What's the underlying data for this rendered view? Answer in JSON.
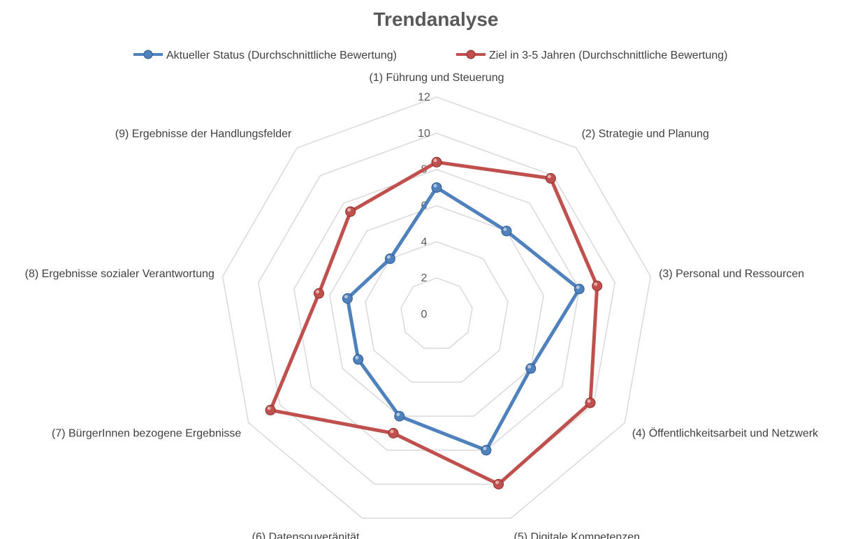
{
  "chart_data": {
    "type": "radar",
    "title": "Trendanalyse",
    "categories": [
      "(1) Führung und Steuerung",
      "(2) Strategie und Planung",
      "(3) Personal und Ressourcen",
      "(4) Öffentlichkeitsarbeit und Netzwerk",
      "(5) Digitale Kompetenzen",
      "(6) Datensouveränität",
      "(7) BürgerInnen bezogene Ergebnisse",
      "(8) Ergebnisse sozialer Verantwortung",
      "(9) Ergebnisse der Handlungsfelder"
    ],
    "series": [
      {
        "name": "Aktueller Status (Durchschnittliche Bewertung)",
        "color": "#4f81bd",
        "values": [
          7,
          6,
          8,
          6,
          8,
          6,
          5,
          5,
          4
        ]
      },
      {
        "name": "Ziel in 3-5 Jahren (Durchschnittliche Bewertung)",
        "color": "#c0504d",
        "values": [
          8.4,
          9.8,
          9,
          9.8,
          10,
          7,
          10.6,
          6.6,
          7.4
        ]
      }
    ],
    "rlim": [
      0,
      12
    ],
    "ticks": [
      "0",
      "2",
      "4",
      "6",
      "8",
      "10",
      "12"
    ],
    "grid": true,
    "legend_position": "top"
  }
}
